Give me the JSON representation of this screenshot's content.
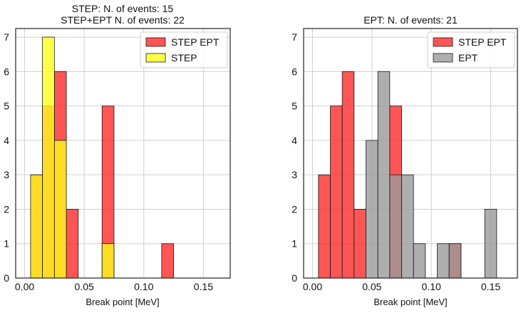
{
  "chart_data": [
    {
      "type": "bar",
      "title_line1": "STEP: N. of events: 15",
      "title_line2": "STEP+EPT N. of events: 22",
      "xlabel": "Break point [MeV]",
      "ylabel": "",
      "xlim": [
        -0.0075,
        0.1725
      ],
      "ylim": [
        0,
        7.25
      ],
      "xticks": [
        "0.00",
        "0.05",
        "0.10",
        "0.15"
      ],
      "xtick_values": [
        0,
        0.05,
        0.1,
        0.15
      ],
      "yticks": [
        "0",
        "1",
        "2",
        "3",
        "4",
        "5",
        "6",
        "7"
      ],
      "grid": true,
      "legend_position": "top-right",
      "bin_width": 0.01,
      "series": [
        {
          "name": "STEP EPT",
          "color": "#ff2a2a",
          "bin_starts": [
            0.005,
            0.015,
            0.025,
            0.035,
            0.065,
            0.115
          ],
          "values": [
            3,
            5,
            6,
            2,
            5,
            1
          ]
        },
        {
          "name": "STEP",
          "color": "#ffff1a",
          "bin_starts": [
            0.005,
            0.015,
            0.025,
            0.065
          ],
          "values": [
            3,
            7,
            4,
            1
          ]
        }
      ]
    },
    {
      "type": "bar",
      "title_line1": "EPT: N. of events: 21",
      "title_line2": "",
      "xlabel": "Break point [MeV]",
      "ylabel": "",
      "xlim": [
        -0.0075,
        0.1725
      ],
      "ylim": [
        0,
        7.25
      ],
      "xticks": [
        "0.00",
        "0.05",
        "0.10",
        "0.15"
      ],
      "xtick_values": [
        0,
        0.05,
        0.1,
        0.15
      ],
      "yticks": [
        "0",
        "1",
        "2",
        "3",
        "4",
        "5",
        "6",
        "7"
      ],
      "grid": true,
      "legend_position": "top-right",
      "bin_width": 0.01,
      "series": [
        {
          "name": "STEP EPT",
          "color": "#ff2a2a",
          "bin_starts": [
            0.005,
            0.015,
            0.025,
            0.035,
            0.065,
            0.115
          ],
          "values": [
            3,
            5,
            6,
            2,
            5,
            1
          ]
        },
        {
          "name": "EPT",
          "color": "#9a9a9a",
          "bin_starts": [
            0.045,
            0.055,
            0.065,
            0.075,
            0.085,
            0.105,
            0.115,
            0.145
          ],
          "values": [
            4,
            6,
            3,
            3,
            1,
            1,
            1,
            2
          ]
        }
      ]
    }
  ]
}
